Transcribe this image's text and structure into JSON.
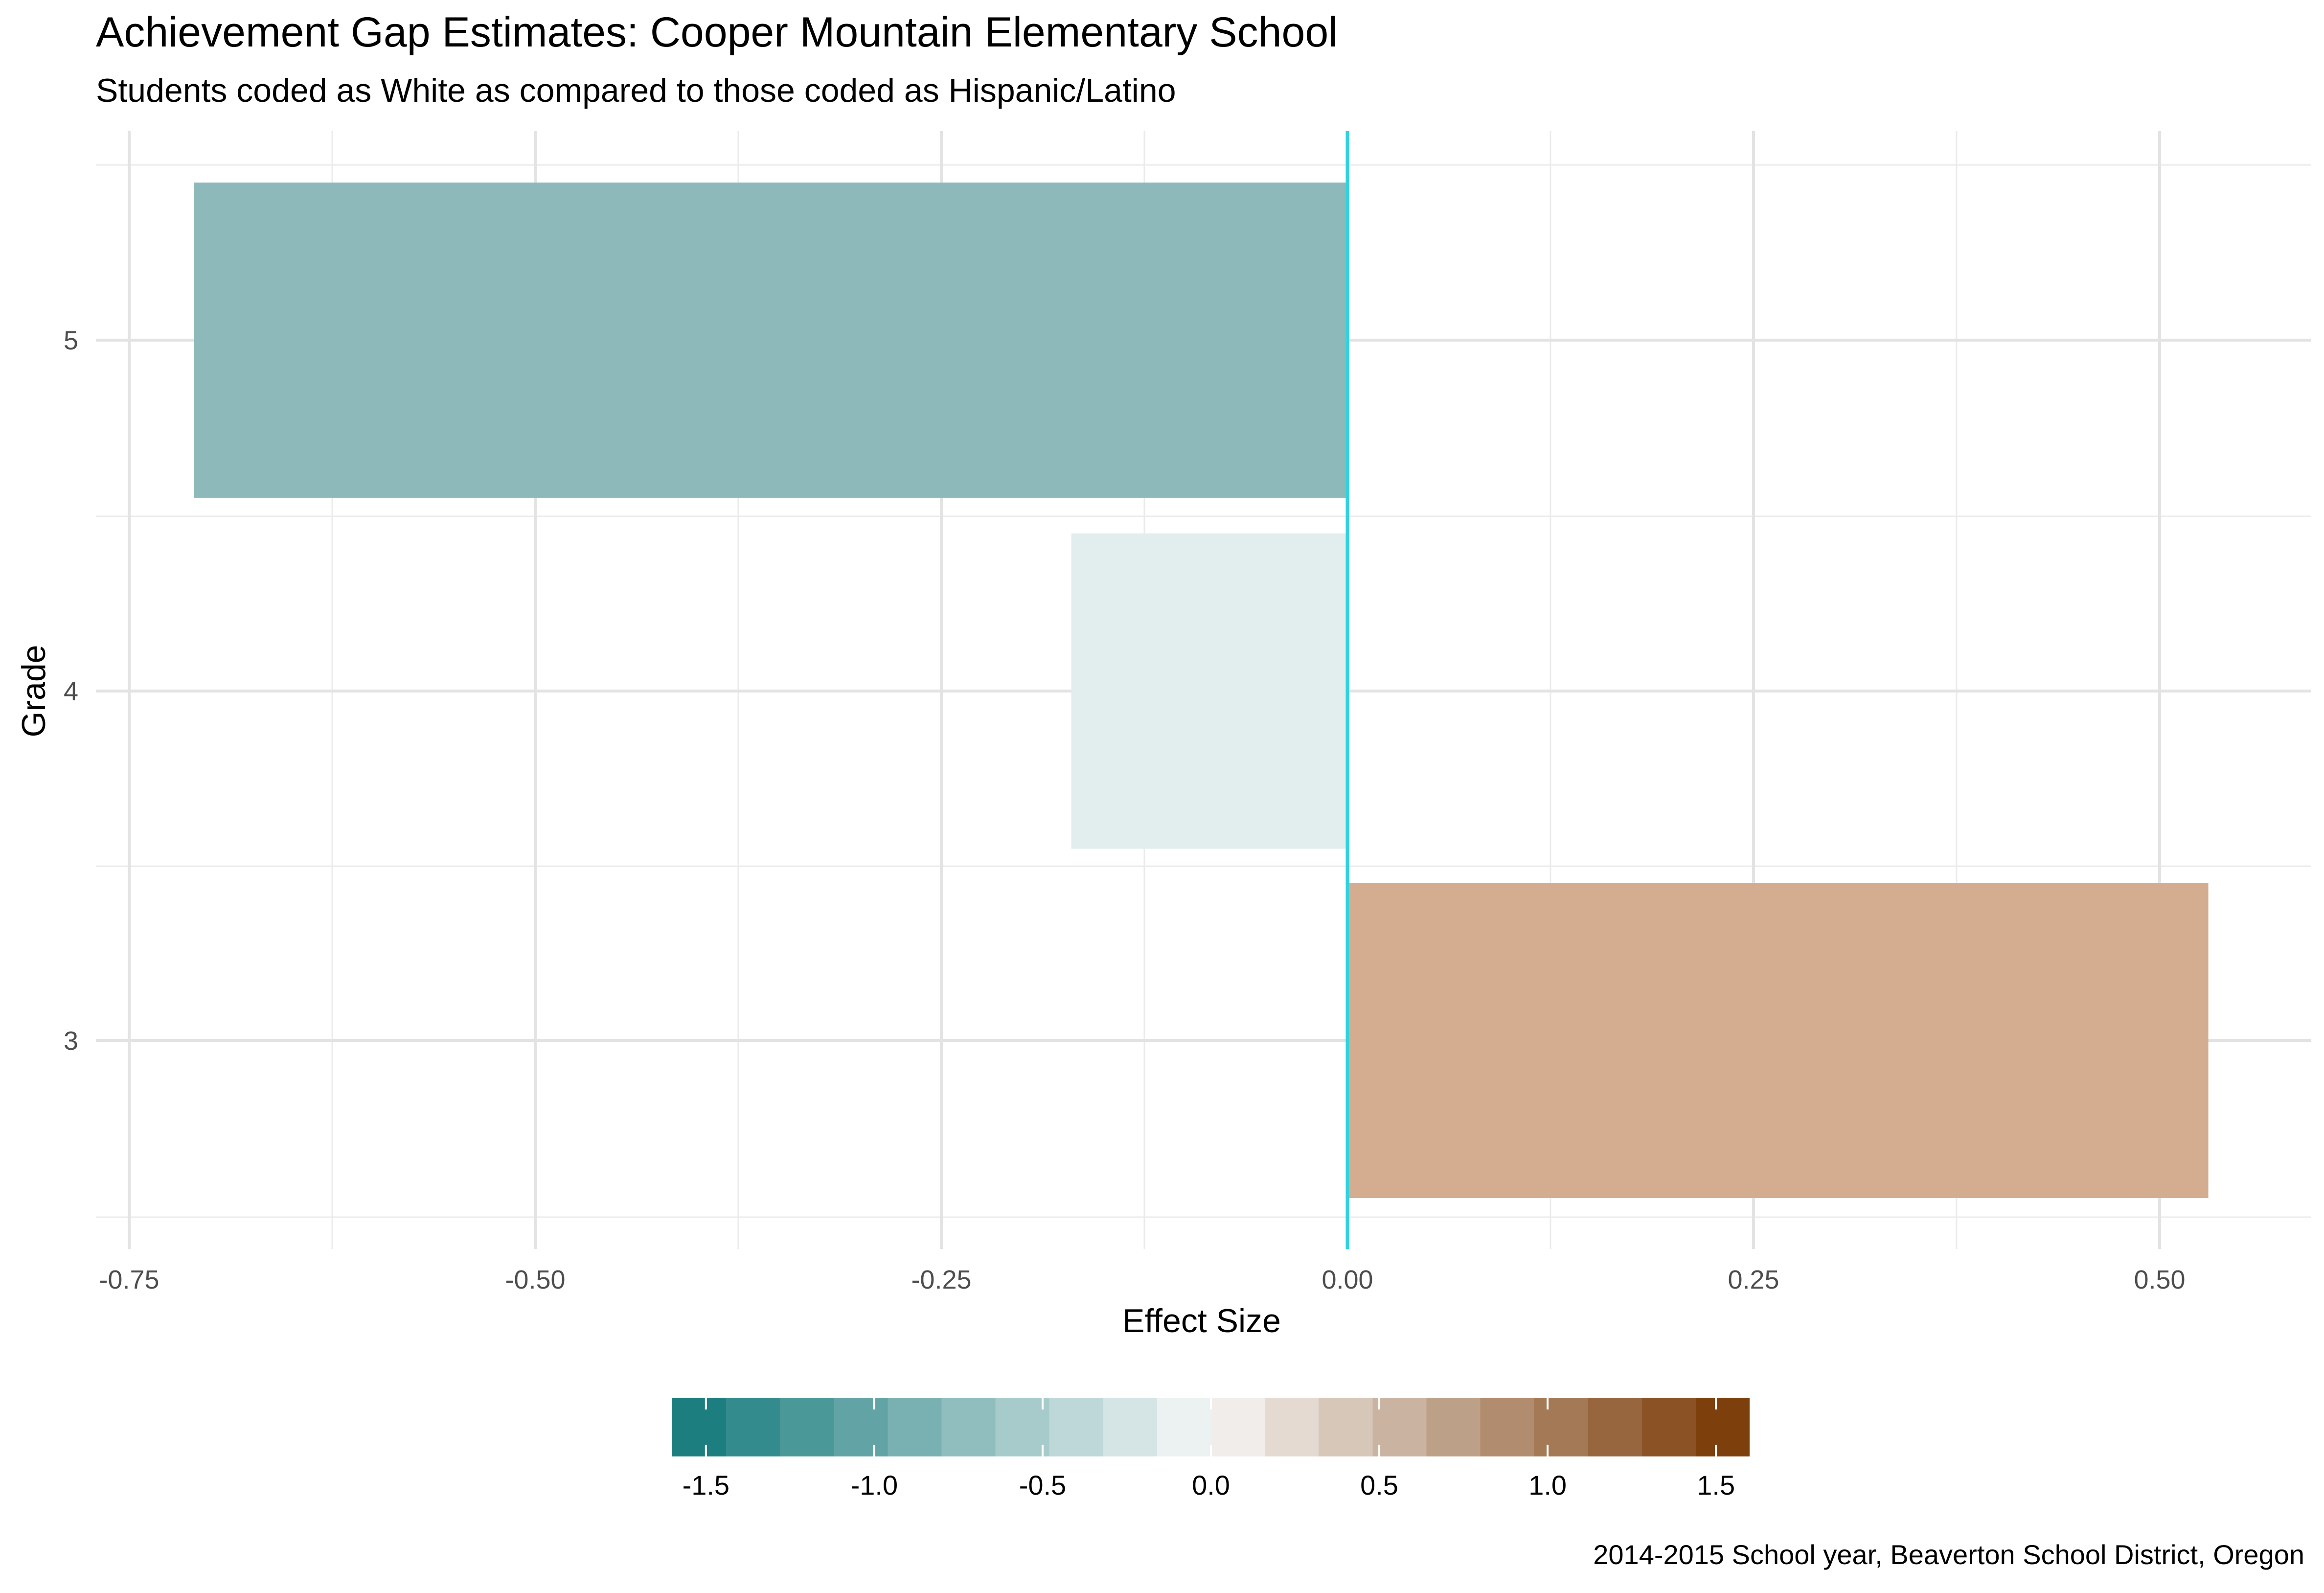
{
  "chart_data": {
    "type": "bar",
    "orientation": "horizontal",
    "title": "Achievement Gap Estimates: Cooper Mountain Elementary School",
    "subtitle": "Students coded as White as compared to those coded as Hispanic/Latino",
    "caption": "2014-2015 School year, Beaverton School District, Oregon",
    "xlabel": "Effect Size",
    "ylabel": "Grade",
    "categories": [
      "3",
      "4",
      "5"
    ],
    "values": [
      0.53,
      -0.17,
      -0.71
    ],
    "bar_colors": [
      "#d4ad91",
      "#e2eeee",
      "#8eb9bb"
    ],
    "xlim": [
      -0.77,
      0.55
    ],
    "xticks": [
      -0.75,
      -0.5,
      -0.25,
      0.0,
      0.25,
      0.5
    ],
    "xtick_labels": [
      "-0.75",
      "-0.50",
      "-0.25",
      "0.00",
      "0.25",
      "0.50"
    ],
    "reference_line": {
      "x": 0,
      "color": "#2fd3e0"
    },
    "grid": true,
    "legend": {
      "type": "colorbar",
      "position": "bottom",
      "range": [
        -1.6,
        1.6
      ],
      "ticks": [
        -1.5,
        -1.0,
        -0.5,
        0.0,
        0.5,
        1.0,
        1.5
      ],
      "tick_labels": [
        "-1.5",
        "-1.0",
        "-0.5",
        "0.0",
        "0.5",
        "1.0",
        "1.5"
      ],
      "colors": [
        "#01665e",
        "#35978f",
        "#80cdc1",
        "#c7eae5",
        "#f5f5f5",
        "#f6e8c3",
        "#dfc27d",
        "#bf812d",
        "#8c510a",
        "#703500"
      ],
      "low_color": "#11787a",
      "mid_color": "#f7f7f7",
      "high_color": "#773500"
    }
  }
}
